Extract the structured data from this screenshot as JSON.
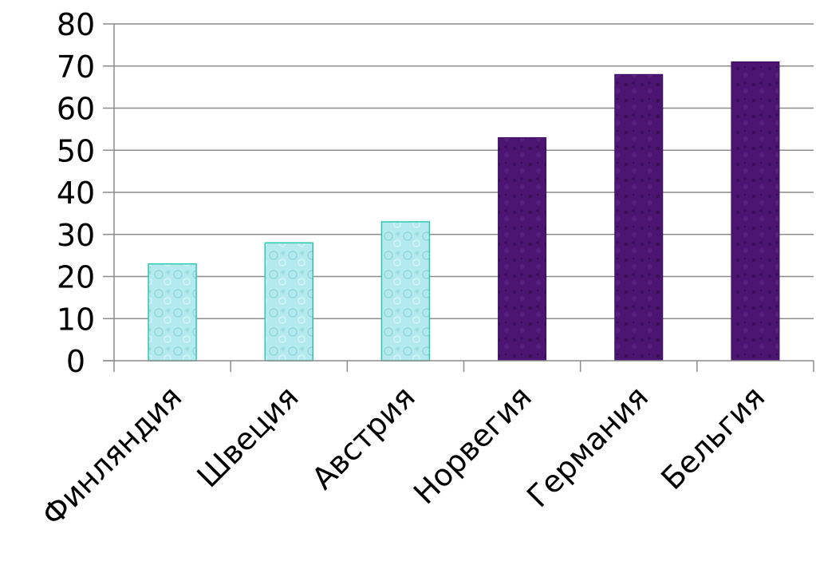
{
  "chart_data": {
    "type": "bar",
    "title": "",
    "xlabel": "",
    "ylabel": "",
    "categories": [
      "Финляндия",
      "Швеция",
      "Австрия",
      "Норвегия",
      "Германия",
      "Бельгия"
    ],
    "values": [
      23,
      28,
      33,
      53,
      68,
      71
    ],
    "ylim": [
      0,
      80
    ],
    "yticks": [
      0,
      10,
      20,
      30,
      40,
      50,
      60,
      70,
      80
    ],
    "grid": true,
    "legend": "none",
    "bar_colors": [
      "#aee8ee",
      "#aee8ee",
      "#aee8ee",
      "#4a1470",
      "#4a1470",
      "#4a1470"
    ],
    "bar_edge_colors": [
      "#2cc9b0",
      "#2cc9b0",
      "#2cc9b0",
      "#3a0f5a",
      "#3a0f5a",
      "#3a0f5a"
    ]
  }
}
